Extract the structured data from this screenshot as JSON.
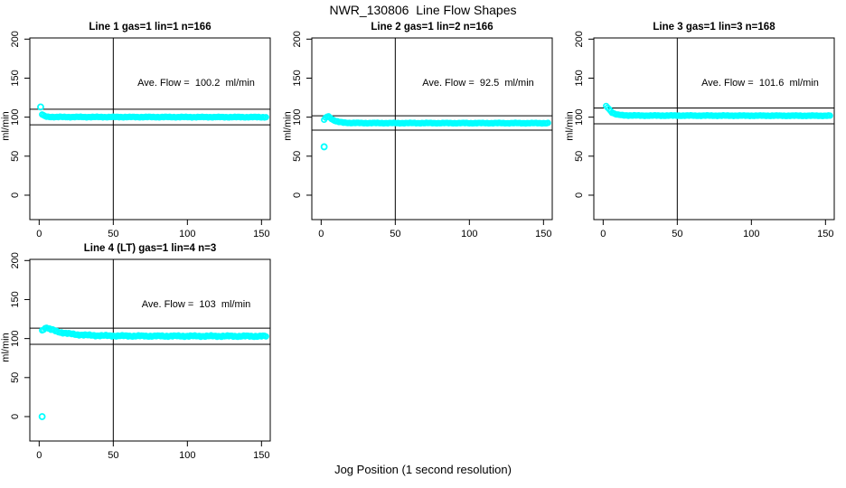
{
  "title": "NWR_130806  Line Flow Shapes",
  "xlabel": "Jog Position (1 second resolution)",
  "chart_data": [
    {
      "type": "scatter",
      "title": "Line 1 gas=1 lin=1 n=166",
      "annotation": "Ave. Flow =  100.2  ml/min",
      "ave_flow": 100.2,
      "ylabel": "ml/min",
      "x_ticks": [
        0,
        50,
        100,
        150
      ],
      "y_ticks": [
        0,
        50,
        100,
        150,
        200
      ],
      "xlim": [
        -6.3,
        155.9
      ],
      "ylim": [
        -31.3,
        201.5
      ],
      "grid": false,
      "point_color": "#00FFFF",
      "ablines": {
        "h": [
          110.2,
          90.2
        ],
        "v": [
          50
        ]
      },
      "series": [
        {
          "name": "flow",
          "control_points": [
            [
              2,
              103.5
            ],
            [
              3,
              102
            ],
            [
              4,
              101
            ],
            [
              6,
              100.4
            ],
            [
              10,
              100.2
            ],
            [
              80,
              100.1
            ],
            [
              153,
              100
            ]
          ],
          "x_step": 1,
          "jitter": 0.55
        }
      ],
      "outliers": [
        [
          1,
          113
        ]
      ]
    },
    {
      "type": "scatter",
      "title": "Line 2 gas=1 lin=2 n=166",
      "annotation": "Ave. Flow =  92.5  ml/min",
      "ave_flow": 92.5,
      "ylabel": "ml/min",
      "x_ticks": [
        0,
        50,
        100,
        150
      ],
      "y_ticks": [
        0,
        50,
        100,
        150,
        200
      ],
      "xlim": [
        -6.3,
        155.9
      ],
      "ylim": [
        -31.3,
        201.5
      ],
      "grid": false,
      "point_color": "#00FFFF",
      "ablines": {
        "h": [
          101.8,
          83.3
        ],
        "v": [
          50
        ]
      },
      "series": [
        {
          "name": "flow",
          "control_points": [
            [
              2,
              96.5
            ],
            [
              3,
              99
            ],
            [
              4,
              100.8
            ],
            [
              5,
              101
            ],
            [
              6,
              99.5
            ],
            [
              7,
              98
            ],
            [
              8,
              96.5
            ],
            [
              10,
              94.8
            ],
            [
              12,
              93.8
            ],
            [
              15,
              93
            ],
            [
              20,
              92.6
            ],
            [
              30,
              92.4
            ],
            [
              153,
              92.3
            ]
          ],
          "x_step": 1,
          "jitter": 0.5
        }
      ],
      "outliers": [
        [
          2,
          62
        ]
      ]
    },
    {
      "type": "scatter",
      "title": "Line 3 gas=1 lin=3 n=168",
      "annotation": "Ave. Flow =  101.6  ml/min",
      "ave_flow": 101.6,
      "ylabel": "ml/min",
      "x_ticks": [
        0,
        50,
        100,
        150
      ],
      "y_ticks": [
        0,
        50,
        100,
        150,
        200
      ],
      "xlim": [
        -6.3,
        155.9
      ],
      "ylim": [
        -31.3,
        201.5
      ],
      "grid": false,
      "point_color": "#00FFFF",
      "ablines": {
        "h": [
          111.8,
          91.4
        ],
        "v": [
          50
        ]
      },
      "series": [
        {
          "name": "flow",
          "control_points": [
            [
              2,
              114
            ],
            [
              3,
              112.5
            ],
            [
              4,
              110.5
            ],
            [
              5,
              108
            ],
            [
              6,
              106
            ],
            [
              8,
              104
            ],
            [
              10,
              103
            ],
            [
              14,
              102.3
            ],
            [
              25,
              102
            ],
            [
              90,
              101.9
            ],
            [
              153,
              101.8
            ]
          ],
          "x_step": 1,
          "jitter": 0.5
        }
      ],
      "outliers": []
    },
    {
      "type": "scatter",
      "title": "Line 4 (LT) gas=1 lin=4 n=3",
      "annotation": "Ave. Flow =  103  ml/min",
      "ave_flow": 103,
      "ylabel": "ml/min",
      "x_ticks": [
        0,
        50,
        100,
        150
      ],
      "y_ticks": [
        0,
        50,
        100,
        150,
        200
      ],
      "xlim": [
        -6.3,
        155.9
      ],
      "ylim": [
        -31.3,
        201.5
      ],
      "grid": false,
      "point_color": "#00FFFF",
      "ablines": {
        "h": [
          113.3,
          92.7
        ],
        "v": [
          50
        ]
      },
      "series": [
        {
          "name": "flow",
          "control_points": [
            [
              2,
              111
            ],
            [
              3,
              112
            ],
            [
              4,
              113
            ],
            [
              5,
              114.5
            ],
            [
              6,
              113
            ],
            [
              8,
              111.5
            ],
            [
              10,
              110.5
            ],
            [
              12,
              109
            ],
            [
              15,
              107.8
            ],
            [
              18,
              106.8
            ],
            [
              22,
              105.8
            ],
            [
              26,
              105
            ],
            [
              32,
              104.3
            ],
            [
              40,
              103.8
            ],
            [
              55,
              103.4
            ],
            [
              75,
              103.2
            ],
            [
              120,
              103.1
            ],
            [
              153,
              103
            ]
          ],
          "x_step": 1,
          "jitter": 1.0
        }
      ],
      "outliers": [
        [
          2,
          0
        ]
      ]
    }
  ]
}
